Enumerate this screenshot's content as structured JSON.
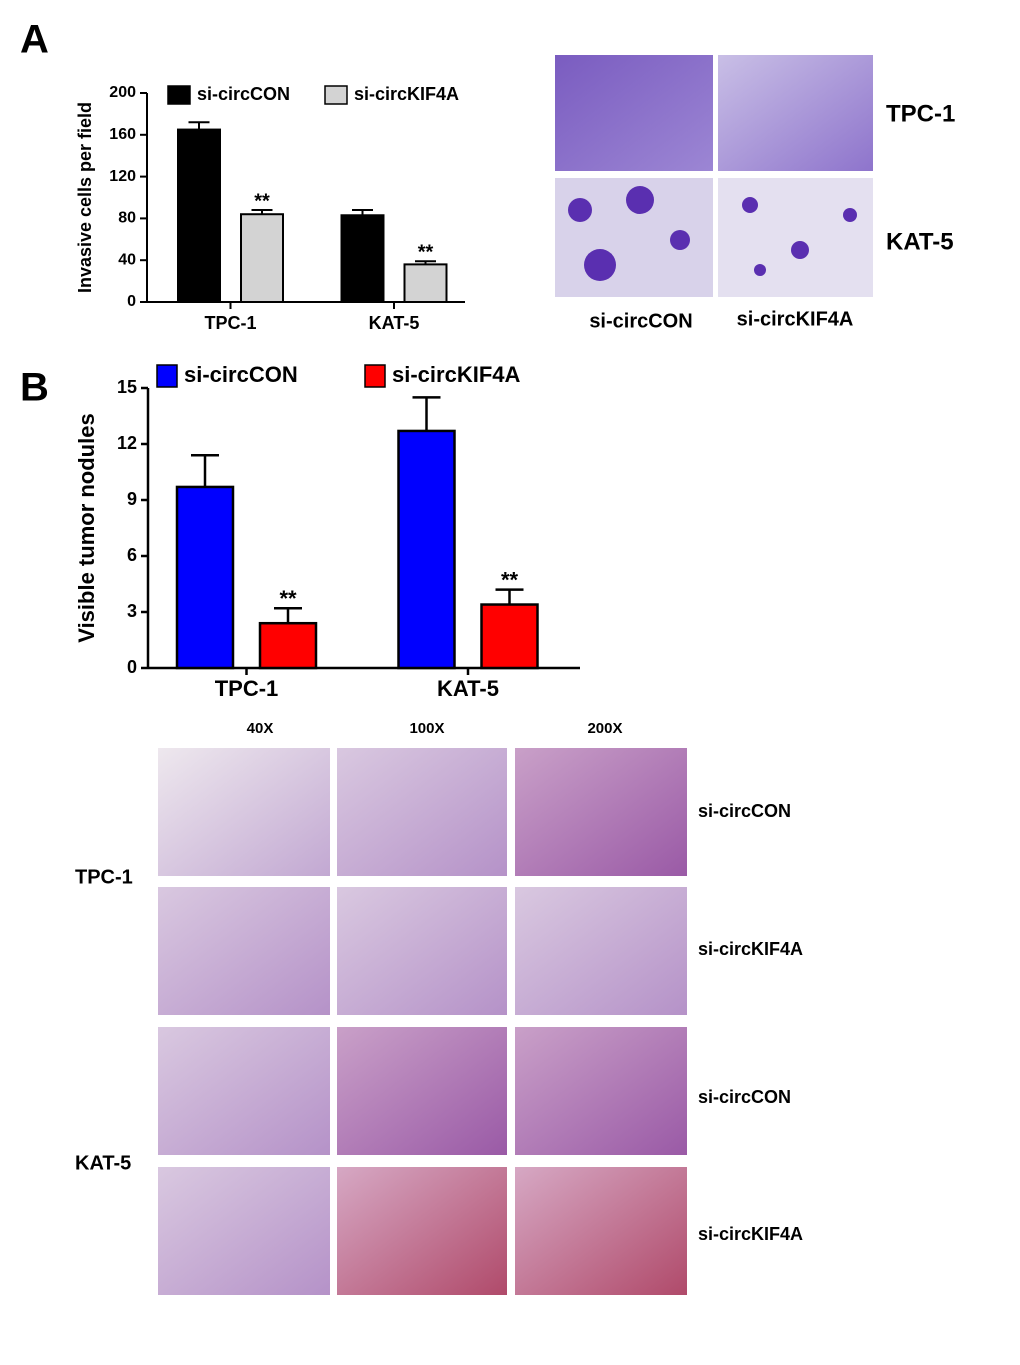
{
  "panel_labels": [
    "A",
    "B"
  ],
  "chart_data": [
    {
      "type": "bar",
      "ylabel": "Invasive cells per field",
      "categories": [
        "TPC-1",
        "KAT-5"
      ],
      "series": [
        {
          "name": "si-circCON",
          "color": "#000000",
          "values": [
            165,
            83
          ],
          "errors": [
            7,
            5
          ]
        },
        {
          "name": "si-circKIF4A",
          "color": "#d3d3d3",
          "values": [
            84,
            36
          ],
          "errors": [
            4,
            3
          ],
          "annotations": [
            "**",
            "**"
          ]
        }
      ],
      "ylim": [
        0,
        200
      ],
      "yticks": [
        0,
        40,
        80,
        120,
        160,
        200
      ]
    },
    {
      "type": "bar",
      "ylabel": "Visible tumor nodules",
      "categories": [
        "TPC-1",
        "KAT-5"
      ],
      "series": [
        {
          "name": "si-circCON",
          "color": "#0000ff",
          "values": [
            9.7,
            12.7
          ],
          "errors": [
            1.7,
            1.8
          ]
        },
        {
          "name": "si-circKIF4A",
          "color": "#ff0000",
          "values": [
            2.4,
            3.4
          ],
          "errors": [
            0.8,
            0.8
          ],
          "annotations": [
            "**",
            "**"
          ]
        }
      ],
      "ylim": [
        0,
        15
      ],
      "yticks": [
        0,
        3,
        6,
        9,
        12,
        15
      ]
    }
  ],
  "invasion_images": {
    "rows": [
      "TPC-1",
      "KAT-5"
    ],
    "columns": [
      "si-circCON",
      "si-circKIF4A"
    ]
  },
  "histology_images": {
    "columns": [
      "40X",
      "100X",
      "200X"
    ],
    "cell_lines": [
      "TPC-1",
      "KAT-5"
    ],
    "groups": [
      "si-circCON",
      "si-circKIF4A",
      "si-circCON",
      "si-circKIF4A"
    ]
  }
}
